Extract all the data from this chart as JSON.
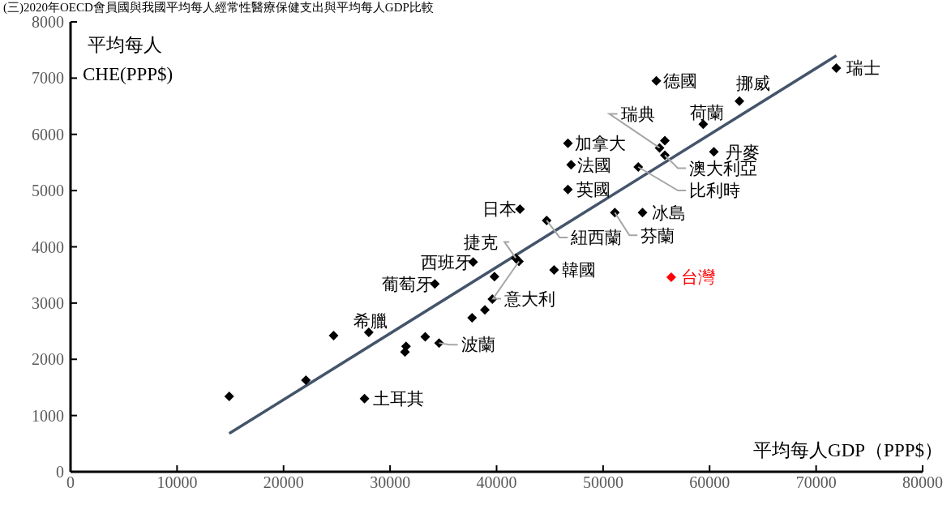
{
  "chart_data": {
    "type": "scatter",
    "title": "(三)2020年OECD會員國與我國平均每人經常性醫療保健支出與平均每人GDP比較",
    "xlabel": "平均每人GDP（PPP$）",
    "ylabel": "平均每人\nCHE(PPP$)",
    "xlim": [
      0,
      80000
    ],
    "xticks": [
      0,
      10000,
      20000,
      30000,
      40000,
      50000,
      60000,
      70000,
      80000
    ],
    "ylim": [
      0,
      8000
    ],
    "yticks": [
      0,
      1000,
      2000,
      3000,
      4000,
      5000,
      6000,
      7000,
      8000
    ],
    "grid": false,
    "legend": false,
    "marker": "diamond",
    "series": [
      {
        "color": "#000000",
        "x": [
          71900,
          55000,
          62800,
          59400,
          55300,
          55800,
          60400,
          55800,
          53300,
          46700,
          47000,
          46700,
          42200,
          44700,
          53700,
          51100,
          45400,
          41800,
          37800,
          42100,
          34200,
          28000,
          34600,
          27600,
          39800,
          39600,
          37700,
          38900,
          24700,
          33300,
          31500,
          31400,
          22100,
          14900
        ],
        "values": [
          7180,
          6950,
          6590,
          6180,
          5760,
          5890,
          5690,
          5630,
          5420,
          5840,
          5460,
          5020,
          4670,
          4470,
          4610,
          4610,
          3590,
          3800,
          3730,
          3740,
          3340,
          2480,
          2290,
          1300,
          3470,
          3070,
          2740,
          2880,
          2420,
          2400,
          2230,
          2130,
          1630,
          1340
        ]
      },
      {
        "color": "#ff0000",
        "x": [
          56400
        ],
        "values": [
          3460
        ]
      },
      {
        "type": "line",
        "color": "#44546a",
        "marker": "none",
        "x": [
          14900,
          71900
        ],
        "values": [
          680,
          7400
        ]
      }
    ],
    "annotations": [
      {
        "text": "瑞士",
        "x": 71900,
        "y": 7180
      },
      {
        "text": "德國",
        "x": 55000,
        "y": 6950
      },
      {
        "text": "挪威",
        "x": 62800,
        "y": 6590
      },
      {
        "text": "荷蘭",
        "x": 59400,
        "y": 6180
      },
      {
        "text": "瑞典",
        "x": 55300,
        "y": 5760
      },
      {
        "text": "丹麥",
        "x": 60400,
        "y": 5690
      },
      {
        "text": "澳大利亞",
        "x": 55800,
        "y": 5630
      },
      {
        "text": "比利時",
        "x": 53300,
        "y": 5420
      },
      {
        "text": "加拿大",
        "x": 46700,
        "y": 5840
      },
      {
        "text": "法國",
        "x": 47000,
        "y": 5460
      },
      {
        "text": "英國",
        "x": 46700,
        "y": 5020
      },
      {
        "text": "日本",
        "x": 42200,
        "y": 4670
      },
      {
        "text": "紐西蘭",
        "x": 44700,
        "y": 4470
      },
      {
        "text": "冰島",
        "x": 53700,
        "y": 4610
      },
      {
        "text": "芬蘭",
        "x": 51100,
        "y": 4610
      },
      {
        "text": "韓國",
        "x": 45400,
        "y": 3590
      },
      {
        "text": "台灣",
        "x": 56400,
        "y": 3460
      },
      {
        "text": "捷克",
        "x": 41800,
        "y": 3800
      },
      {
        "text": "西班牙",
        "x": 37800,
        "y": 3730
      },
      {
        "text": "意大利",
        "x": 42100,
        "y": 3740
      },
      {
        "text": "葡萄牙",
        "x": 34200,
        "y": 3340
      },
      {
        "text": "希臘",
        "x": 28000,
        "y": 2480
      },
      {
        "text": "波蘭",
        "x": 34600,
        "y": 2290
      },
      {
        "text": "土耳其",
        "x": 27600,
        "y": 1300
      }
    ]
  }
}
